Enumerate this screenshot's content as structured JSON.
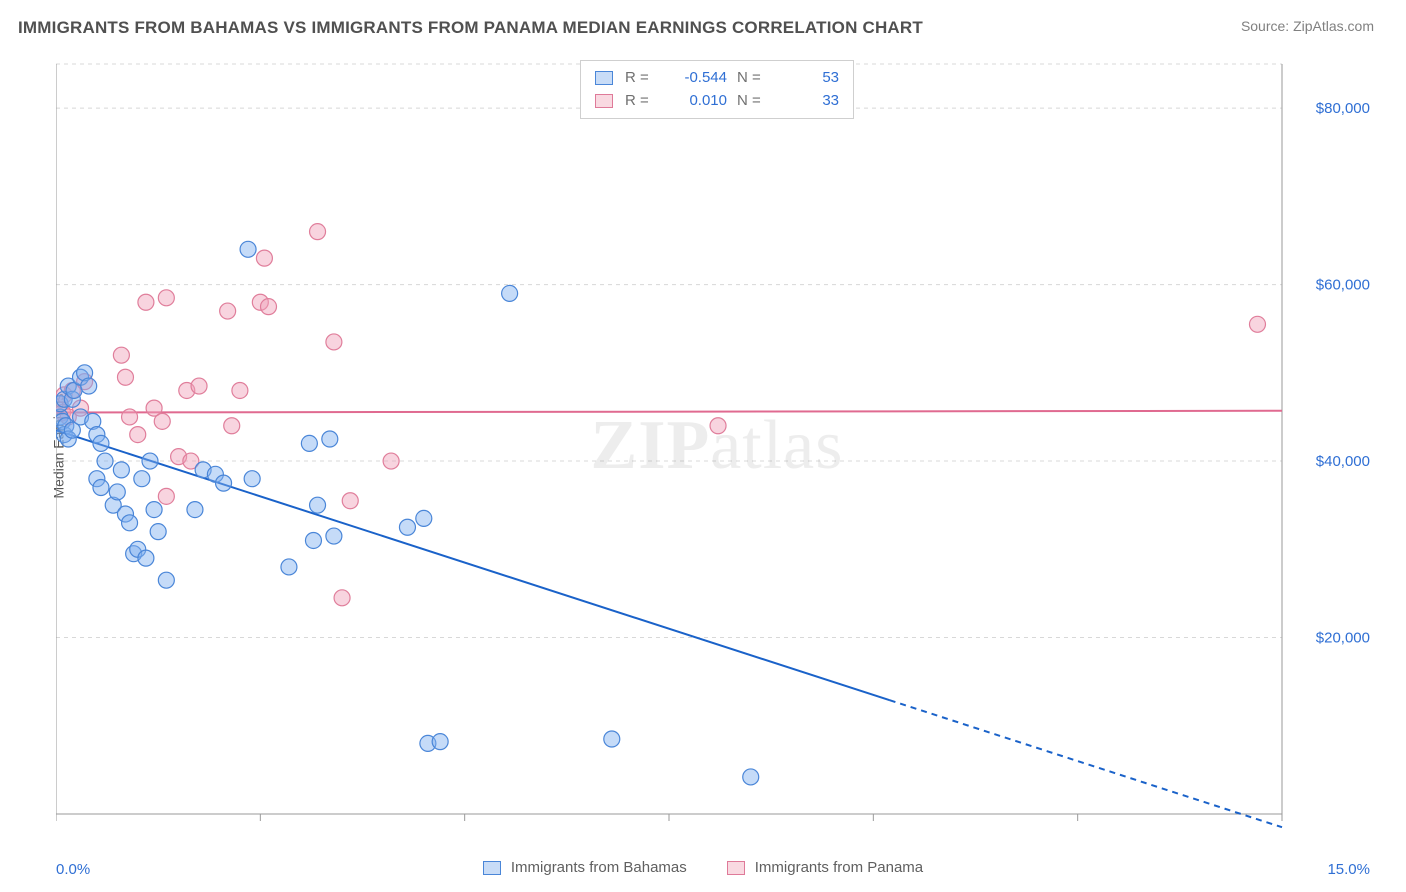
{
  "title": "IMMIGRANTS FROM BAHAMAS VS IMMIGRANTS FROM PANAMA MEDIAN EARNINGS CORRELATION CHART",
  "source_label": "Source: ZipAtlas.com",
  "ylabel": "Median Earnings",
  "watermark_bold": "ZIP",
  "watermark_rest": "atlas",
  "legend": {
    "series_a": "Immigrants from Bahamas",
    "series_b": "Immigrants from Panama"
  },
  "stats": {
    "r_label": "R =",
    "n_label": "N =",
    "a_r": "-0.544",
    "a_n": "53",
    "b_r": "0.010",
    "b_n": "33"
  },
  "axes": {
    "xlim": [
      0,
      15
    ],
    "ylim": [
      0,
      85000
    ],
    "xticks": [
      0,
      2.5,
      5,
      7.5,
      10,
      12.5,
      15
    ],
    "y_gridlines": [
      20000,
      40000,
      60000,
      80000
    ],
    "ytick_labels": [
      "$20,000",
      "$40,000",
      "$60,000",
      "$80,000"
    ],
    "xmin_label": "0.0%",
    "xmax_label": "15.0%"
  },
  "colors": {
    "series_a_stroke": "#4a86d8",
    "series_a_fill": "rgba(126,176,240,0.45)",
    "series_b_stroke": "#e07e9b",
    "series_b_fill": "rgba(240,160,185,0.45)",
    "trend_a": "#1a62c9",
    "trend_b": "#e06a90",
    "grid": "#d8d8d8",
    "axis": "#9a9a9a",
    "background": "#ffffff"
  },
  "marker_radius": 8,
  "line_width": 2,
  "trend_a": {
    "y_at_x0": 43500,
    "y_at_x15": -1500,
    "solid_until_x": 10.2
  },
  "trend_b": {
    "y_at_x0": 45500,
    "y_at_x15": 45700
  },
  "series_a_points": [
    [
      0.05,
      45000
    ],
    [
      0.05,
      46500
    ],
    [
      0.08,
      44500
    ],
    [
      0.1,
      43000
    ],
    [
      0.1,
      47000
    ],
    [
      0.12,
      44000
    ],
    [
      0.15,
      48500
    ],
    [
      0.15,
      42500
    ],
    [
      0.2,
      47000
    ],
    [
      0.2,
      43500
    ],
    [
      0.22,
      48000
    ],
    [
      0.3,
      45000
    ],
    [
      0.3,
      49500
    ],
    [
      0.35,
      50000
    ],
    [
      0.4,
      48500
    ],
    [
      0.45,
      44500
    ],
    [
      0.5,
      43000
    ],
    [
      0.5,
      38000
    ],
    [
      0.55,
      37000
    ],
    [
      0.55,
      42000
    ],
    [
      0.6,
      40000
    ],
    [
      0.7,
      35000
    ],
    [
      0.75,
      36500
    ],
    [
      0.8,
      39000
    ],
    [
      0.85,
      34000
    ],
    [
      0.9,
      33000
    ],
    [
      0.95,
      29500
    ],
    [
      1.0,
      30000
    ],
    [
      1.05,
      38000
    ],
    [
      1.1,
      29000
    ],
    [
      1.15,
      40000
    ],
    [
      1.2,
      34500
    ],
    [
      1.25,
      32000
    ],
    [
      1.35,
      26500
    ],
    [
      1.7,
      34500
    ],
    [
      1.8,
      39000
    ],
    [
      1.95,
      38500
    ],
    [
      2.05,
      37500
    ],
    [
      2.35,
      64000
    ],
    [
      2.4,
      38000
    ],
    [
      2.85,
      28000
    ],
    [
      3.1,
      42000
    ],
    [
      3.15,
      31000
    ],
    [
      3.2,
      35000
    ],
    [
      3.35,
      42500
    ],
    [
      3.4,
      31500
    ],
    [
      4.3,
      32500
    ],
    [
      4.5,
      33500
    ],
    [
      4.55,
      8000
    ],
    [
      4.7,
      8200
    ],
    [
      5.55,
      59000
    ],
    [
      6.8,
      8500
    ],
    [
      8.5,
      4200
    ]
  ],
  "series_b_points": [
    [
      0.05,
      46500
    ],
    [
      0.08,
      45500
    ],
    [
      0.1,
      47500
    ],
    [
      0.15,
      45000
    ],
    [
      0.2,
      48000
    ],
    [
      0.3,
      46000
    ],
    [
      0.35,
      49000
    ],
    [
      0.8,
      52000
    ],
    [
      0.85,
      49500
    ],
    [
      0.9,
      45000
    ],
    [
      1.0,
      43000
    ],
    [
      1.1,
      58000
    ],
    [
      1.2,
      46000
    ],
    [
      1.3,
      44500
    ],
    [
      1.35,
      36000
    ],
    [
      1.35,
      58500
    ],
    [
      1.5,
      40500
    ],
    [
      1.6,
      48000
    ],
    [
      1.65,
      40000
    ],
    [
      1.75,
      48500
    ],
    [
      2.1,
      57000
    ],
    [
      2.15,
      44000
    ],
    [
      2.25,
      48000
    ],
    [
      2.5,
      58000
    ],
    [
      2.55,
      63000
    ],
    [
      2.6,
      57500
    ],
    [
      3.2,
      66000
    ],
    [
      3.4,
      53500
    ],
    [
      3.5,
      24500
    ],
    [
      3.6,
      35500
    ],
    [
      4.1,
      40000
    ],
    [
      8.1,
      44000
    ],
    [
      14.7,
      55500
    ]
  ]
}
